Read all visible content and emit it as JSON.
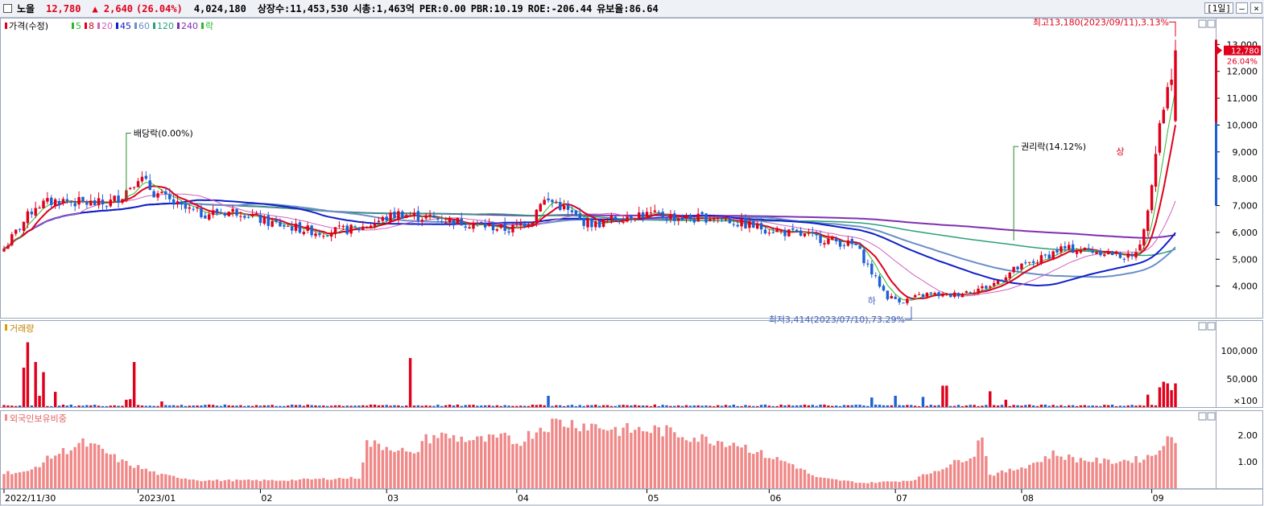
{
  "header": {
    "stock_name": "노을",
    "price": "12,780",
    "change": "▲ 2,640",
    "change_pct": "(26.04%)",
    "volume": "4,024,180",
    "shares": "상장수:11,453,530",
    "market_cap": "시총:1,463억",
    "per": "PER:0.00",
    "pbr": "PBR:10.19",
    "roe": "ROE:-206.44",
    "lockup": "유보율:86.64",
    "period": "[1일]"
  },
  "colors": {
    "up": "#e0001b",
    "down": "#1f5fd6",
    "ma5": "#2fb82f",
    "ma8": "#e0001b",
    "ma20": "#d060c0",
    "ma45": "#1020c8",
    "ma60": "#6a8fc8",
    "ma120": "#2aa07a",
    "ma240": "#8030b0"
  },
  "price_panel": {
    "legend": [
      {
        "label": "가격(수정)",
        "color": "#e0001b"
      },
      {
        "label": "5",
        "color": "#2fb82f"
      },
      {
        "label": "8",
        "color": "#e0001b"
      },
      {
        "label": "20",
        "color": "#d060c0"
      },
      {
        "label": "45",
        "color": "#1020c8"
      },
      {
        "label": "60",
        "color": "#6a8fc8"
      },
      {
        "label": "120",
        "color": "#2aa07a"
      },
      {
        "label": "240",
        "color": "#8030b0"
      },
      {
        "label": "락",
        "color": "#2fb82f"
      }
    ],
    "y_ticks": [
      "13,000",
      "12,000",
      "11,000",
      "10,000",
      "9,000",
      "8,000",
      "7,000",
      "6,000",
      "5,000",
      "4,000"
    ],
    "current_price": "12,780",
    "current_pct": "26.04%",
    "high_annotation": "최고13,180(2023/09/11),3.13%",
    "low_annotation": "최저3,414(2023/07/10),73.29%",
    "dividend_annotation": "배당락(0.00%)",
    "rights_annotation": "권리락(14.12%)",
    "limit_down_mark": "하",
    "limit_up_mark": "상"
  },
  "volume_panel": {
    "title": "거래량",
    "y_ticks": [
      "100,000",
      "50,000"
    ],
    "unit": "×100"
  },
  "foreign_panel": {
    "title": "외국인보유비중",
    "y_ticks": [
      "2.00",
      "1.00"
    ]
  },
  "x_axis": [
    "2022/11/30",
    "2023/01",
    "02",
    "03",
    "04",
    "05",
    "06",
    "07",
    "08",
    "09"
  ],
  "chart_data": {
    "type": "candlestick",
    "price_range": [
      3000,
      13400
    ],
    "close_anchors": [
      [
        0,
        5400
      ],
      [
        8,
        7000
      ],
      [
        14,
        7200
      ],
      [
        20,
        7100
      ],
      [
        26,
        7050
      ],
      [
        30,
        7400
      ],
      [
        34,
        8100
      ],
      [
        38,
        7500
      ],
      [
        45,
        6900
      ],
      [
        50,
        6700
      ],
      [
        60,
        6800
      ],
      [
        66,
        6400
      ],
      [
        80,
        6000
      ],
      [
        90,
        6150
      ],
      [
        100,
        6700
      ],
      [
        110,
        6500
      ],
      [
        120,
        6300
      ],
      [
        128,
        6100
      ],
      [
        134,
        6500
      ],
      [
        136,
        7200
      ],
      [
        140,
        7100
      ],
      [
        146,
        6450
      ],
      [
        150,
        6300
      ],
      [
        160,
        6700
      ],
      [
        175,
        6500
      ],
      [
        180,
        6600
      ],
      [
        186,
        6350
      ],
      [
        198,
        6000
      ],
      [
        210,
        5700
      ],
      [
        216,
        5500
      ],
      [
        220,
        4500
      ],
      [
        224,
        3600
      ],
      [
        228,
        3450
      ],
      [
        234,
        3700
      ],
      [
        240,
        3650
      ],
      [
        244,
        3800
      ],
      [
        250,
        4000
      ],
      [
        256,
        4600
      ],
      [
        262,
        4950
      ],
      [
        268,
        5400
      ],
      [
        278,
        5300
      ],
      [
        286,
        5050
      ],
      [
        289,
        6000
      ],
      [
        291,
        8000
      ],
      [
        293,
        10100
      ],
      [
        295,
        11300
      ],
      [
        297,
        12780
      ]
    ],
    "volume_note": "volume in ×100 shares",
    "volume_spikes": [
      [
        5,
        70000
      ],
      [
        6,
        115000
      ],
      [
        8,
        80000
      ],
      [
        9,
        20000
      ],
      [
        10,
        62000
      ],
      [
        13,
        27000
      ],
      [
        31,
        13000
      ],
      [
        32,
        14000
      ],
      [
        33,
        80000
      ],
      [
        40,
        10000
      ],
      [
        103,
        87000
      ],
      [
        138,
        20000
      ],
      [
        220,
        17000
      ],
      [
        226,
        20000
      ],
      [
        233,
        18000
      ],
      [
        238,
        38000
      ],
      [
        239,
        38000
      ],
      [
        250,
        28000
      ],
      [
        254,
        13000
      ],
      [
        290,
        22000
      ],
      [
        293,
        35000
      ],
      [
        294,
        45000
      ],
      [
        295,
        42000
      ],
      [
        296,
        30000
      ],
      [
        297,
        42000
      ]
    ],
    "foreign_ratio_range": [
      0,
      2.7
    ],
    "foreign_ratio_anchors": [
      [
        0,
        0.6
      ],
      [
        6,
        0.6
      ],
      [
        12,
        1.2
      ],
      [
        20,
        1.7
      ],
      [
        24,
        1.5
      ],
      [
        30,
        1.0
      ],
      [
        40,
        0.5
      ],
      [
        50,
        0.3
      ],
      [
        70,
        0.3
      ],
      [
        90,
        0.4
      ],
      [
        92,
        1.7
      ],
      [
        100,
        1.5
      ],
      [
        104,
        1.2
      ],
      [
        106,
        1.8
      ],
      [
        110,
        2.0
      ],
      [
        120,
        1.8
      ],
      [
        128,
        1.9
      ],
      [
        130,
        1.7
      ],
      [
        136,
        2.3
      ],
      [
        140,
        2.5
      ],
      [
        148,
        2.4
      ],
      [
        156,
        2.2
      ],
      [
        166,
        2.2
      ],
      [
        176,
        1.9
      ],
      [
        186,
        1.7
      ],
      [
        192,
        1.3
      ],
      [
        200,
        0.9
      ],
      [
        206,
        0.4
      ],
      [
        218,
        0.2
      ],
      [
        230,
        0.3
      ],
      [
        240,
        0.9
      ],
      [
        246,
        1.3
      ],
      [
        248,
        2.1
      ],
      [
        250,
        0.5
      ],
      [
        256,
        0.7
      ],
      [
        262,
        1.0
      ],
      [
        266,
        1.3
      ],
      [
        272,
        1.1
      ],
      [
        280,
        1.0
      ],
      [
        288,
        1.1
      ],
      [
        292,
        1.3
      ],
      [
        294,
        1.8
      ],
      [
        297,
        1.8
      ]
    ]
  }
}
